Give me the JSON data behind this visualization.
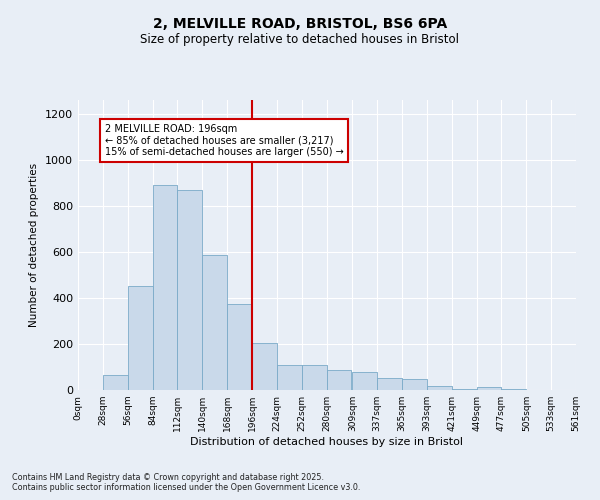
{
  "title1": "2, MELVILLE ROAD, BRISTOL, BS6 6PA",
  "title2": "Size of property relative to detached houses in Bristol",
  "xlabel": "Distribution of detached houses by size in Bristol",
  "ylabel": "Number of detached properties",
  "bar_color": "#c9d9ea",
  "bar_edge_color": "#7aaac8",
  "bg_color": "#e8eef6",
  "grid_color": "#ffffff",
  "vline_x": 196,
  "vline_color": "#cc0000",
  "annotation_title": "2 MELVILLE ROAD: 196sqm",
  "annotation_line1": "← 85% of detached houses are smaller (3,217)",
  "annotation_line2": "15% of semi-detached houses are larger (550) →",
  "annotation_box_color": "#ffffff",
  "annotation_box_edge": "#cc0000",
  "categories": [
    "0sqm",
    "28sqm",
    "56sqm",
    "84sqm",
    "112sqm",
    "140sqm",
    "168sqm",
    "196sqm",
    "224sqm",
    "252sqm",
    "280sqm",
    "309sqm",
    "337sqm",
    "365sqm",
    "393sqm",
    "421sqm",
    "449sqm",
    "477sqm",
    "505sqm",
    "533sqm",
    "561sqm"
  ],
  "bin_edges": [
    0,
    28,
    56,
    84,
    112,
    140,
    168,
    196,
    224,
    252,
    280,
    309,
    337,
    365,
    393,
    421,
    449,
    477,
    505,
    533,
    561
  ],
  "values": [
    0,
    65,
    450,
    890,
    870,
    585,
    375,
    205,
    110,
    110,
    85,
    80,
    50,
    48,
    18,
    5,
    15,
    5,
    0,
    0,
    0
  ],
  "ylim": [
    0,
    1260
  ],
  "yticks": [
    0,
    200,
    400,
    600,
    800,
    1000,
    1200
  ],
  "footnote1": "Contains HM Land Registry data © Crown copyright and database right 2025.",
  "footnote2": "Contains public sector information licensed under the Open Government Licence v3.0."
}
